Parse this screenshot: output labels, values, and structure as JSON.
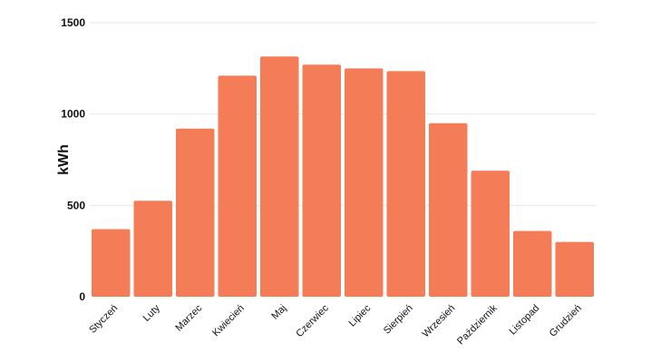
{
  "chart_data": {
    "type": "bar",
    "ylabel": "kWh",
    "xlabel": "",
    "ylim": [
      0,
      1500
    ],
    "yticks": [
      0,
      500,
      1000,
      1500
    ],
    "grid": true,
    "categories": [
      "Styczeń",
      "Luty",
      "Marzec",
      "Kwiecień",
      "Maj",
      "Czerwiec",
      "Lipiec",
      "Sierpień",
      "Wrzesień",
      "Październik",
      "Listopad",
      "Grudzień"
    ],
    "values": [
      370,
      525,
      920,
      1210,
      1315,
      1270,
      1250,
      1235,
      950,
      690,
      360,
      300
    ],
    "bar_color": "#f47c56",
    "grid_color": "#e6e6e6"
  }
}
